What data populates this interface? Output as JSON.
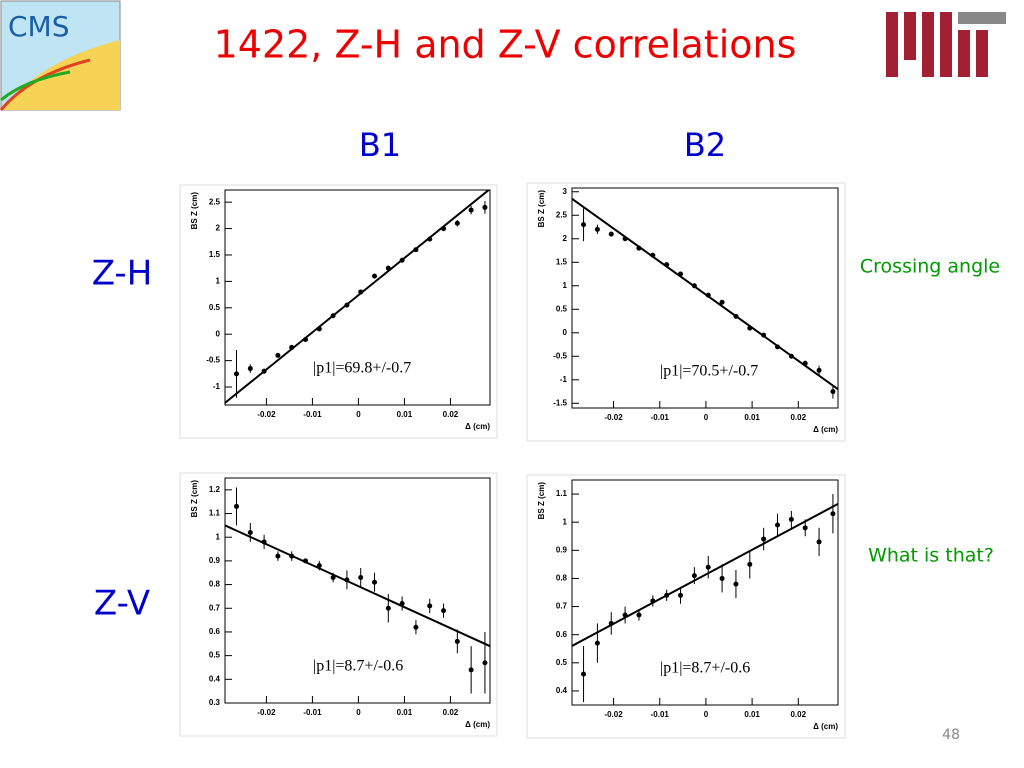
{
  "title": "1422, Z-H and Z-V correlations",
  "logo_text": "CMS",
  "columns": [
    "B1",
    "B2"
  ],
  "rows": [
    "Z-H",
    "Z-V"
  ],
  "notes": [
    "Crossing angle",
    "What is that?"
  ],
  "page_number": "48",
  "chart_data": [
    {
      "type": "scatter",
      "xlabel": "Δ (cm)",
      "ylabel": "BS Z (cm)",
      "annotation": "|p1|=69.8+/-0.7",
      "x": [
        -0.0265,
        -0.0235,
        -0.0205,
        -0.0175,
        -0.0145,
        -0.0115,
        -0.0085,
        -0.0055,
        -0.0025,
        0.0005,
        0.0035,
        0.0065,
        0.0095,
        0.0125,
        0.0155,
        0.0185,
        0.0215,
        0.0245,
        0.0275
      ],
      "values": [
        -0.75,
        -0.65,
        -0.7,
        -0.4,
        -0.25,
        -0.1,
        0.1,
        0.35,
        0.55,
        0.8,
        1.1,
        1.25,
        1.4,
        1.6,
        1.8,
        2.0,
        2.1,
        2.35,
        2.4
      ],
      "errors": [
        0.45,
        0.08,
        0.05,
        0.04,
        0.04,
        0.04,
        0.04,
        0.04,
        0.04,
        0.04,
        0.04,
        0.04,
        0.04,
        0.04,
        0.04,
        0.05,
        0.06,
        0.08,
        0.12
      ],
      "fit": {
        "x": [
          -0.029,
          0.0286
        ],
        "y": [
          -1.3,
          2.75
        ]
      },
      "xlim": [
        -0.029,
        0.0286
      ],
      "ylim": [
        -1.34,
        2.73
      ],
      "xticks": [
        -0.02,
        -0.01,
        0,
        0.01,
        0.02
      ],
      "yticks": [
        -1,
        -0.5,
        0,
        0.5,
        1,
        1.5,
        2,
        2.5
      ],
      "color": "#000000"
    },
    {
      "type": "scatter",
      "xlabel": "Δ (cm)",
      "ylabel": "BS Z (cm)",
      "annotation": "|p1|=70.5+/-0.7",
      "x": [
        -0.0265,
        -0.0235,
        -0.0205,
        -0.0175,
        -0.0145,
        -0.0115,
        -0.0085,
        -0.0055,
        -0.0025,
        0.0005,
        0.0035,
        0.0065,
        0.0095,
        0.0125,
        0.0155,
        0.0185,
        0.0215,
        0.0245,
        0.0275
      ],
      "values": [
        2.3,
        2.2,
        2.1,
        2.0,
        1.8,
        1.65,
        1.45,
        1.25,
        1.0,
        0.8,
        0.65,
        0.35,
        0.1,
        -0.05,
        -0.3,
        -0.5,
        -0.65,
        -0.8,
        -1.25
      ],
      "errors": [
        0.35,
        0.1,
        0.05,
        0.04,
        0.04,
        0.04,
        0.04,
        0.04,
        0.04,
        0.04,
        0.04,
        0.04,
        0.04,
        0.04,
        0.04,
        0.05,
        0.06,
        0.1,
        0.15
      ],
      "fit": {
        "x": [
          -0.029,
          0.0286
        ],
        "y": [
          2.85,
          -1.2
        ]
      },
      "xlim": [
        -0.029,
        0.0286
      ],
      "ylim": [
        -1.6,
        3.08
      ],
      "xticks": [
        -0.02,
        -0.01,
        0,
        0.01,
        0.02
      ],
      "yticks": [
        -1.5,
        -1,
        -0.5,
        0,
        0.5,
        1,
        1.5,
        2,
        2.5,
        3
      ],
      "color": "#000000"
    },
    {
      "type": "scatter",
      "xlabel": "Δ (cm)",
      "ylabel": "BS Z (cm)",
      "annotation": "|p1|=8.7+/-0.6",
      "x": [
        -0.0265,
        -0.0235,
        -0.0205,
        -0.0175,
        -0.0145,
        -0.0115,
        -0.0085,
        -0.0055,
        -0.0025,
        0.0005,
        0.0035,
        0.0065,
        0.0095,
        0.0125,
        0.0155,
        0.0185,
        0.0215,
        0.0245,
        0.0275
      ],
      "values": [
        1.13,
        1.02,
        0.98,
        0.92,
        0.92,
        0.9,
        0.88,
        0.83,
        0.82,
        0.83,
        0.81,
        0.7,
        0.72,
        0.62,
        0.71,
        0.69,
        0.56,
        0.44,
        0.47
      ],
      "errors": [
        0.08,
        0.04,
        0.03,
        0.02,
        0.02,
        0.01,
        0.02,
        0.02,
        0.04,
        0.04,
        0.04,
        0.06,
        0.03,
        0.03,
        0.03,
        0.03,
        0.05,
        0.1,
        0.13
      ],
      "fit": {
        "x": [
          -0.029,
          0.0286
        ],
        "y": [
          1.05,
          0.54
        ]
      },
      "xlim": [
        -0.029,
        0.0286
      ],
      "ylim": [
        0.3,
        1.25
      ],
      "xticks": [
        -0.02,
        -0.01,
        0,
        0.01,
        0.02
      ],
      "yticks": [
        0.3,
        0.4,
        0.5,
        0.6,
        0.7,
        0.8,
        0.9,
        1,
        1.1,
        1.2
      ],
      "color": "#000000"
    },
    {
      "type": "scatter",
      "xlabel": "Δ (cm)",
      "ylabel": "BS Z (cm)",
      "annotation": "|p1|=8.7+/-0.6",
      "x": [
        -0.0265,
        -0.0235,
        -0.0205,
        -0.0175,
        -0.0145,
        -0.0115,
        -0.0085,
        -0.0055,
        -0.0025,
        0.0005,
        0.0035,
        0.0065,
        0.0095,
        0.0125,
        0.0155,
        0.0185,
        0.0215,
        0.0245,
        0.0275
      ],
      "values": [
        0.46,
        0.57,
        0.64,
        0.67,
        0.67,
        0.72,
        0.74,
        0.74,
        0.81,
        0.84,
        0.8,
        0.78,
        0.85,
        0.94,
        0.99,
        1.01,
        0.98,
        0.93,
        1.03
      ],
      "errors": [
        0.1,
        0.07,
        0.04,
        0.03,
        0.02,
        0.02,
        0.02,
        0.03,
        0.03,
        0.04,
        0.05,
        0.05,
        0.05,
        0.04,
        0.04,
        0.03,
        0.03,
        0.05,
        0.07
      ],
      "fit": {
        "x": [
          -0.029,
          0.0286
        ],
        "y": [
          0.56,
          1.065
        ]
      },
      "xlim": [
        -0.029,
        0.0286
      ],
      "ylim": [
        0.35,
        1.15
      ],
      "xticks": [
        -0.02,
        -0.01,
        0,
        0.01,
        0.02
      ],
      "yticks": [
        0.4,
        0.5,
        0.6,
        0.7,
        0.8,
        0.9,
        1,
        1.1
      ],
      "color": "#000000"
    }
  ]
}
